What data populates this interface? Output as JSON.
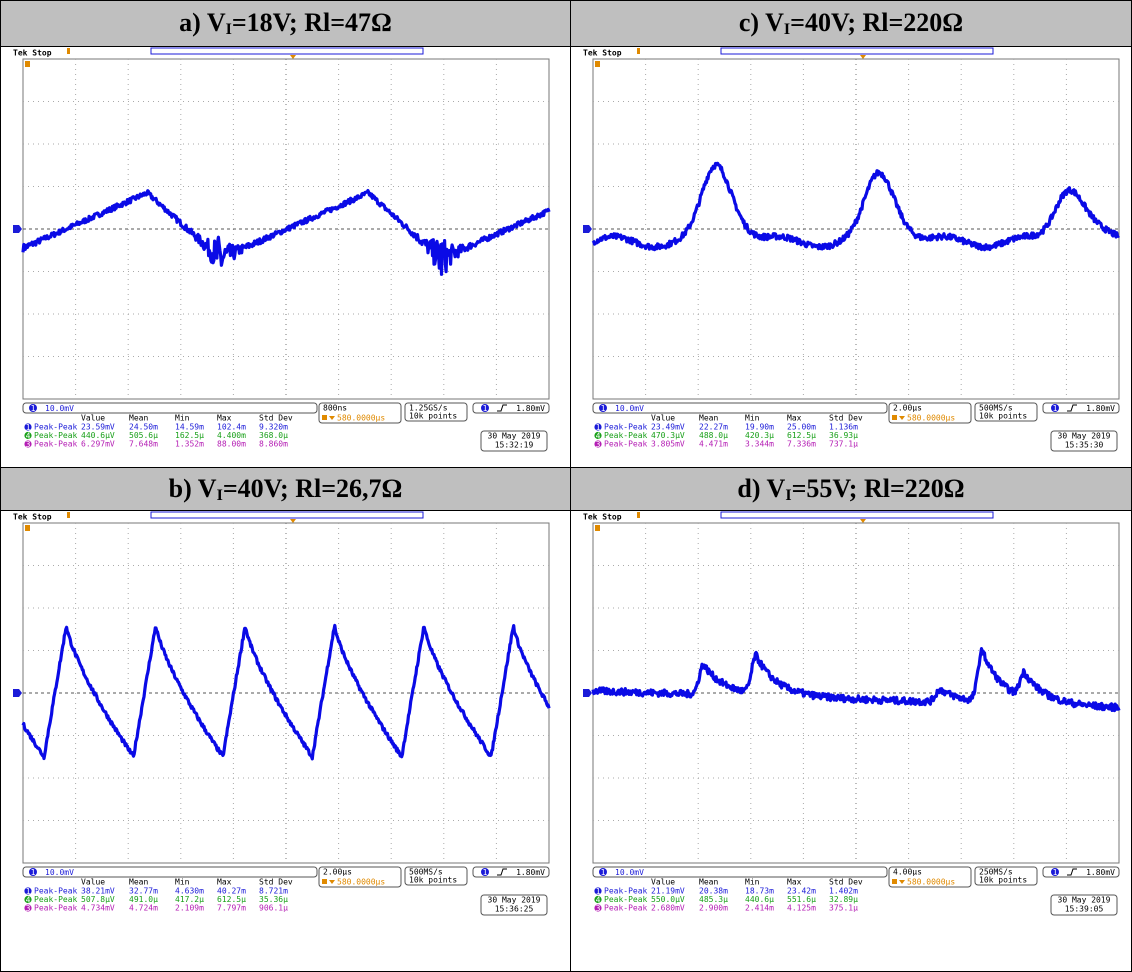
{
  "panels": [
    {
      "title": {
        "prefix": "a) V",
        "sub": "I",
        "rest": "=18V; Rl=47Ω"
      },
      "status": "Tek Stop",
      "channel": "1",
      "scale": "10.0mV",
      "timebase": "800ns",
      "position": "580.0000µs",
      "sample_rate": "1.25GS/s",
      "record": "10k points",
      "trigger": "1.80mV",
      "meas_header": [
        "Value",
        "Mean",
        "Min",
        "Max",
        "Std Dev"
      ],
      "meas": [
        {
          "ch": "1",
          "name": "Peak-Peak",
          "values": [
            "23.59mV",
            "24.50m",
            "14.59m",
            "102.4m",
            "9.320m"
          ]
        },
        {
          "ch": "4",
          "name": "Peak-Peak",
          "values": [
            "440.6µV",
            "505.6µ",
            "162.5µ",
            "4.400m",
            "368.0µ"
          ]
        },
        {
          "ch": "3",
          "name": "Peak-Peak",
          "values": [
            "6.297mV",
            "7.648m",
            "1.352m",
            "88.00m",
            "8.860m"
          ]
        }
      ],
      "date": "30 May 2019",
      "time": "15:32:19"
    },
    {
      "title": {
        "prefix": "c) V",
        "sub": "I",
        "rest": "=40V; Rl=220Ω"
      },
      "status": "Tek Stop",
      "channel": "1",
      "scale": "10.0mV",
      "timebase": "2.00µs",
      "position": "580.0000µs",
      "sample_rate": "500MS/s",
      "record": "10k points",
      "trigger": "1.80mV",
      "meas_header": [
        "Value",
        "Mean",
        "Min",
        "Max",
        "Std Dev"
      ],
      "meas": [
        {
          "ch": "1",
          "name": "Peak-Peak",
          "values": [
            "23.49mV",
            "22.27m",
            "19.90m",
            "25.00m",
            "1.136m"
          ]
        },
        {
          "ch": "4",
          "name": "Peak-Peak",
          "values": [
            "470.3µV",
            "488.0µ",
            "420.3µ",
            "612.5µ",
            "36.93µ"
          ]
        },
        {
          "ch": "3",
          "name": "Peak-Peak",
          "values": [
            "3.805mV",
            "4.471m",
            "3.344m",
            "7.336m",
            "737.1µ"
          ]
        }
      ],
      "date": "30 May 2019",
      "time": "15:35:30"
    },
    {
      "title": {
        "prefix": "b) V",
        "sub": "I",
        "rest": "=40V; Rl=26,7Ω"
      },
      "status": "Tek Stop",
      "channel": "1",
      "scale": "10.0mV",
      "timebase": "2.00µs",
      "position": "580.0000µs",
      "sample_rate": "500MS/s",
      "record": "10k points",
      "trigger": "1.80mV",
      "meas_header": [
        "Value",
        "Mean",
        "Min",
        "Max",
        "Std Dev"
      ],
      "meas": [
        {
          "ch": "1",
          "name": "Peak-Peak",
          "values": [
            "38.21mV",
            "32.77m",
            "4.630m",
            "40.27m",
            "8.721m"
          ]
        },
        {
          "ch": "4",
          "name": "Peak-Peak",
          "values": [
            "507.8µV",
            "491.0µ",
            "417.2µ",
            "612.5µ",
            "35.36µ"
          ]
        },
        {
          "ch": "3",
          "name": "Peak-Peak",
          "values": [
            "4.734mV",
            "4.724m",
            "2.109m",
            "7.797m",
            "906.1µ"
          ]
        }
      ],
      "date": "30 May 2019",
      "time": "15:36:25"
    },
    {
      "title": {
        "prefix": "d) V",
        "sub": "I",
        "rest": "=55V; Rl=220Ω"
      },
      "status": "Tek Stop",
      "channel": "1",
      "scale": "10.0mV",
      "timebase": "4.00µs",
      "position": "580.0000µs",
      "sample_rate": "250MS/s",
      "record": "10k points",
      "trigger": "1.80mV",
      "meas_header": [
        "Value",
        "Mean",
        "Min",
        "Max",
        "Std Dev"
      ],
      "meas": [
        {
          "ch": "1",
          "name": "Peak-Peak",
          "values": [
            "21.19mV",
            "20.38m",
            "18.73m",
            "23.42m",
            "1.402m"
          ]
        },
        {
          "ch": "4",
          "name": "Peak-Peak",
          "values": [
            "550.0µV",
            "485.3µ",
            "440.6µ",
            "551.6µ",
            "32.89µ"
          ]
        },
        {
          "ch": "3",
          "name": "Peak-Peak",
          "values": [
            "2.680mV",
            "2.900m",
            "2.414m",
            "4.125m",
            "375.1µ"
          ]
        }
      ],
      "date": "30 May 2019",
      "time": "15:39:05"
    }
  ]
}
